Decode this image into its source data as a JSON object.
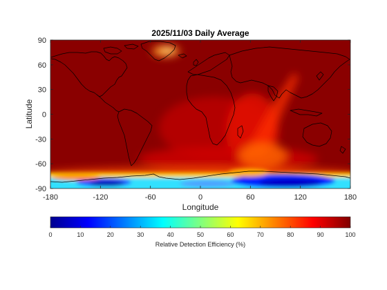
{
  "chart_data": {
    "type": "heatmap",
    "title": "2025/11/03 Daily Average",
    "xlabel": "Longitude",
    "ylabel": "Latitude",
    "xlim": [
      -180,
      180
    ],
    "ylim": [
      -90,
      90
    ],
    "xticks": [
      -180,
      -120,
      -60,
      0,
      60,
      120,
      180
    ],
    "yticks": [
      90,
      60,
      30,
      0,
      -30,
      -60,
      -90
    ],
    "colorbar": {
      "label": "Relative Detection Efficiency (%)",
      "range": [
        0,
        100
      ],
      "ticks": [
        0,
        10,
        20,
        30,
        40,
        50,
        60,
        70,
        80,
        90,
        100
      ],
      "colormap": "jet"
    },
    "background_value": 100,
    "regions": [
      {
        "name": "Antarctic coast band",
        "lat_range": [
          -90,
          -62
        ],
        "lon_range": [
          -180,
          180
        ],
        "approx_value_range": [
          5,
          40
        ]
      },
      {
        "name": "Southern Indian Ocean plume",
        "lat_range": [
          -70,
          20
        ],
        "lon_range": [
          20,
          110
        ],
        "approx_value_range": [
          75,
          92
        ]
      },
      {
        "name": "Greenland hotspot",
        "lat_range": [
          68,
          82
        ],
        "lon_range": [
          -50,
          -20
        ],
        "approx_value_range": [
          80,
          95
        ]
      },
      {
        "name": "South Atlantic / Africa",
        "lat_range": [
          -40,
          10
        ],
        "lon_range": [
          -20,
          60
        ],
        "approx_value_range": [
          88,
          96
        ]
      }
    ],
    "grid": false,
    "legend": "colorbar-bottom"
  }
}
